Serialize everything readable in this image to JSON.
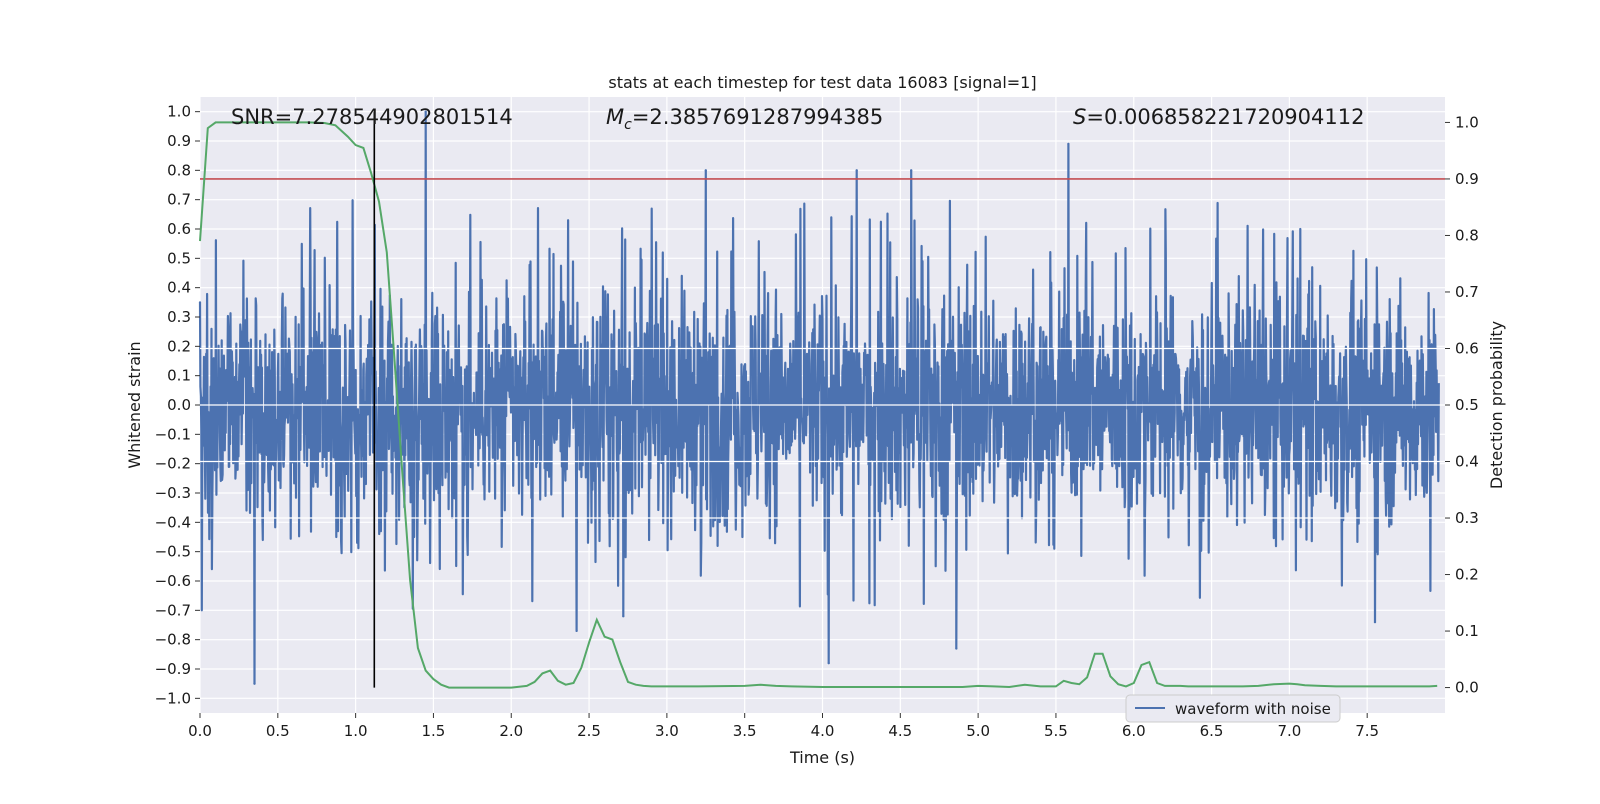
{
  "chart_data": {
    "type": "line",
    "title": "stats at each timestep for test data 16083 [signal=1]",
    "xlabel": "Time (s)",
    "ylabel": "Whitened strain",
    "y2label": "Detection probability",
    "xlim": [
      0.0,
      8.0
    ],
    "ylim": [
      -1.05,
      1.05
    ],
    "y2lim": [
      -0.045,
      1.045
    ],
    "xticks": [
      0.0,
      0.5,
      1.0,
      1.5,
      2.0,
      2.5,
      3.0,
      3.5,
      4.0,
      4.5,
      5.0,
      5.5,
      6.0,
      6.5,
      7.0,
      7.5
    ],
    "xtick_labels": [
      "0.0",
      "0.5",
      "1.0",
      "1.5",
      "2.0",
      "2.5",
      "3.0",
      "3.5",
      "4.0",
      "4.5",
      "5.0",
      "5.5",
      "6.0",
      "6.5",
      "7.0",
      "7.5"
    ],
    "yticks": [
      1.0,
      0.9,
      0.8,
      0.7,
      0.6,
      0.5,
      0.4,
      0.3,
      0.2,
      0.1,
      0.0,
      -0.1,
      -0.2,
      -0.3,
      -0.4,
      -0.5,
      -0.6,
      -0.7,
      -0.8,
      -0.9,
      -1.0
    ],
    "ytick_labels": [
      "1.0",
      "0.9",
      "0.8",
      "0.7",
      "0.6",
      "0.5",
      "0.4",
      "0.3",
      "0.2",
      "0.1",
      "0.0",
      "−0.1",
      "−0.2",
      "−0.3",
      "−0.4",
      "−0.5",
      "−0.6",
      "−0.7",
      "−0.8",
      "−0.9",
      "−1.0"
    ],
    "y2ticks": [
      1.0,
      0.9,
      0.8,
      0.7,
      0.6,
      0.5,
      0.4,
      0.3,
      0.2,
      0.1,
      0.0
    ],
    "y2tick_labels": [
      "1.0",
      "0.9",
      "0.8",
      "0.7",
      "0.6",
      "0.5",
      "0.4",
      "0.3",
      "0.2",
      "0.1",
      "0.0"
    ],
    "grid": true,
    "legend_position": "lower-right",
    "annotations": {
      "snr": "SNR=7.278544902801514",
      "mc_symbol": "M",
      "mc_subscript": "c",
      "mc_value": "=2.3857691287994385",
      "s_symbol": "S",
      "s_value": "=0.006858221720904112"
    },
    "threshold": {
      "axis": "y2",
      "value": 0.9
    },
    "marker": {
      "axis": "x",
      "value": 1.12
    },
    "series": [
      {
        "name": "waveform with noise",
        "axis": "y",
        "style": "line",
        "summary": "dense noisy whitened strain, t=0 to 8 s, mostly within ±0.4, peaks near +1.0 at 1.45 s and below −0.9 at 0.35 s",
        "x": [
          0.0,
          0.35,
          1.45,
          2.42,
          2.72,
          3.25,
          4.04,
          4.22,
          4.57,
          4.86,
          5.58,
          7.55
        ],
        "y": [
          0.35,
          -0.95,
          1.0,
          -0.77,
          -0.72,
          0.8,
          -0.88,
          0.8,
          0.8,
          -0.83,
          0.89,
          -0.74
        ]
      },
      {
        "axis": "y2",
        "style": "line",
        "x": [
          0.0,
          0.05,
          0.1,
          0.15,
          0.2,
          0.3,
          0.4,
          0.5,
          0.6,
          0.7,
          0.8,
          0.87,
          0.95,
          1.0,
          1.05,
          1.1,
          1.15,
          1.2,
          1.25,
          1.3,
          1.35,
          1.4,
          1.45,
          1.5,
          1.55,
          1.6,
          1.7,
          1.8,
          1.9,
          2.0,
          2.1,
          2.15,
          2.2,
          2.25,
          2.3,
          2.35,
          2.4,
          2.45,
          2.5,
          2.55,
          2.6,
          2.65,
          2.7,
          2.75,
          2.8,
          2.85,
          2.9,
          2.95,
          3.0,
          3.2,
          3.5,
          3.6,
          3.7,
          3.8,
          4.0,
          4.2,
          4.5,
          4.8,
          4.9,
          5.0,
          5.1,
          5.2,
          5.3,
          5.4,
          5.5,
          5.55,
          5.6,
          5.65,
          5.7,
          5.75,
          5.8,
          5.85,
          5.9,
          5.95,
          6.0,
          6.05,
          6.1,
          6.15,
          6.2,
          6.25,
          6.3,
          6.35,
          6.4,
          6.5,
          6.6,
          6.7,
          6.8,
          6.9,
          7.0,
          7.05,
          7.1,
          7.2,
          7.3,
          7.4,
          7.5,
          7.6,
          7.7,
          7.8,
          7.9,
          7.95
        ],
        "y": [
          0.79,
          0.99,
          1.0,
          1.0,
          1.0,
          1.0,
          1.0,
          1.0,
          1.0,
          1.0,
          0.999,
          0.995,
          0.975,
          0.96,
          0.955,
          0.91,
          0.86,
          0.77,
          0.58,
          0.38,
          0.19,
          0.07,
          0.03,
          0.015,
          0.005,
          0.0,
          0.0,
          0.0,
          0.0,
          0.0,
          0.003,
          0.01,
          0.025,
          0.03,
          0.012,
          0.005,
          0.008,
          0.035,
          0.08,
          0.12,
          0.09,
          0.085,
          0.045,
          0.01,
          0.005,
          0.003,
          0.002,
          0.002,
          0.002,
          0.002,
          0.003,
          0.005,
          0.003,
          0.002,
          0.001,
          0.001,
          0.001,
          0.001,
          0.001,
          0.003,
          0.002,
          0.001,
          0.005,
          0.002,
          0.002,
          0.012,
          0.008,
          0.006,
          0.018,
          0.06,
          0.06,
          0.02,
          0.006,
          0.002,
          0.008,
          0.04,
          0.045,
          0.008,
          0.003,
          0.003,
          0.003,
          0.002,
          0.002,
          0.002,
          0.002,
          0.002,
          0.003,
          0.006,
          0.007,
          0.006,
          0.004,
          0.003,
          0.002,
          0.002,
          0.002,
          0.002,
          0.002,
          0.002,
          0.002,
          0.003
        ]
      }
    ],
    "colors": {
      "plot_background": "#eaeaf2",
      "grid": "#ffffff",
      "waveform": "#4c72b0",
      "probability": "#55a868",
      "threshold": "#c44e52",
      "marker": "#000000"
    }
  }
}
